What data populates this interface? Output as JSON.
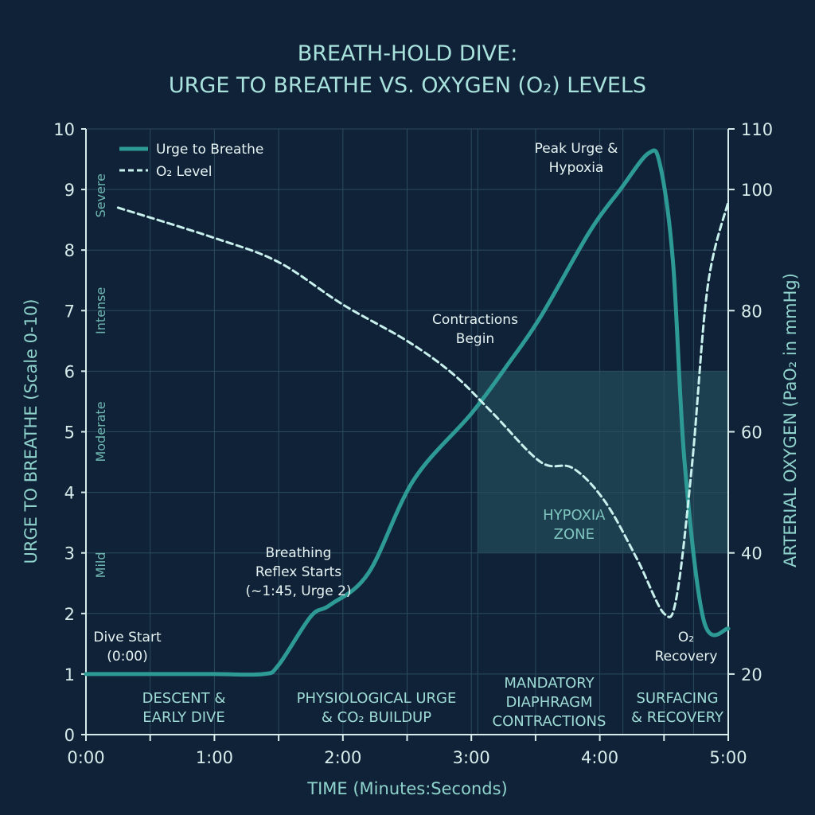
{
  "chart_data": {
    "type": "line",
    "title": [
      "BREATH-HOLD DIVE:",
      "URGE TO BREATHE VS. OXYGEN (O₂) LEVELS"
    ],
    "xlabel": "TIME (Minutes:Seconds)",
    "ylabel_left": "URGE TO BREATHE (Scale 0-10)",
    "ylabel_right": "ARTERIAL OXYGEN (PaO₂ in mmHg)",
    "x_unit": "minutes",
    "xlim": [
      0,
      5
    ],
    "x_ticks": [
      {
        "v": 0,
        "label": "0:00"
      },
      {
        "v": 1,
        "label": "1:00"
      },
      {
        "v": 2,
        "label": "2:00"
      },
      {
        "v": 3,
        "label": "3:00"
      },
      {
        "v": 4,
        "label": "4:00"
      },
      {
        "v": 5,
        "label": "5:00"
      }
    ],
    "ylim_left": [
      0,
      10
    ],
    "y_ticks_left": [
      "0",
      "1",
      "2",
      "3",
      "4",
      "5",
      "6",
      "7",
      "8",
      "9",
      "10"
    ],
    "ylim_right": [
      10,
      110
    ],
    "y_ticks_right": [
      "20",
      "40",
      "60",
      "80",
      "100",
      "110"
    ],
    "severity_labels": [
      {
        "label": "Mild",
        "at": 2.8
      },
      {
        "label": "Moderate",
        "at": 5
      },
      {
        "label": "Intense",
        "at": 7
      },
      {
        "label": "Severe",
        "at": 8.9
      }
    ],
    "grid": true,
    "legend_position": "top-left",
    "colors": {
      "background": "#0f2238",
      "urge": "#2e9a96",
      "o2": "#c8f0ec",
      "hypoxia_zone": "#2a5a66"
    },
    "series": [
      {
        "name": "Urge to Breathe",
        "axis": "left",
        "style": "solid",
        "x": [
          0,
          0.5,
          1.0,
          1.38,
          1.5,
          1.75,
          1.9,
          2.2,
          2.55,
          3.0,
          3.28,
          3.54,
          3.92,
          4.16,
          4.38,
          4.47,
          4.57,
          4.66,
          4.81,
          5.0
        ],
        "y": [
          1,
          1,
          1,
          1,
          1.15,
          1.95,
          2.14,
          2.67,
          4.2,
          5.3,
          6.1,
          6.9,
          8.3,
          9.0,
          9.6,
          9.4,
          7.8,
          4.5,
          1.88,
          1.75
        ]
      },
      {
        "name": "O₂ Level",
        "axis": "right",
        "style": "dashed",
        "x": [
          0.25,
          1.0,
          1.5,
          2.0,
          2.5,
          2.86,
          3.17,
          3.54,
          3.79,
          4.04,
          4.29,
          4.5,
          4.6,
          4.72,
          4.84,
          5.0
        ],
        "y": [
          97,
          92,
          88,
          81,
          75,
          69.5,
          63,
          55,
          54,
          48.5,
          39,
          30,
          33,
          55,
          84,
          98
        ]
      }
    ],
    "hypoxia_zone": {
      "label": [
        "HYPOXIA",
        "ZONE"
      ],
      "x": [
        3.05,
        5
      ],
      "y_left": [
        3,
        6
      ]
    },
    "annotations": [
      {
        "lines": [
          "Dive Start",
          "(0:00)"
        ]
      },
      {
        "lines": [
          "Breathing",
          "Reflex Starts",
          "(~1:45, Urge 2)"
        ]
      },
      {
        "lines": [
          "Contractions",
          "Begin"
        ]
      },
      {
        "lines": [
          "Peak Urge &",
          "Hypoxia"
        ]
      },
      {
        "lines": [
          "O₂",
          "Recovery"
        ]
      }
    ],
    "phases": [
      {
        "lines": [
          "DESCENT &",
          "EARLY DIVE"
        ]
      },
      {
        "lines": [
          "PHYSIOLOGICAL URGE",
          "& CO₂ BUILDUP"
        ]
      },
      {
        "lines": [
          "MANDATORY",
          "DIAPHRAGM",
          "CONTRACTIONS"
        ]
      },
      {
        "lines": [
          "SURFACING",
          "& RECOVERY"
        ]
      }
    ]
  }
}
